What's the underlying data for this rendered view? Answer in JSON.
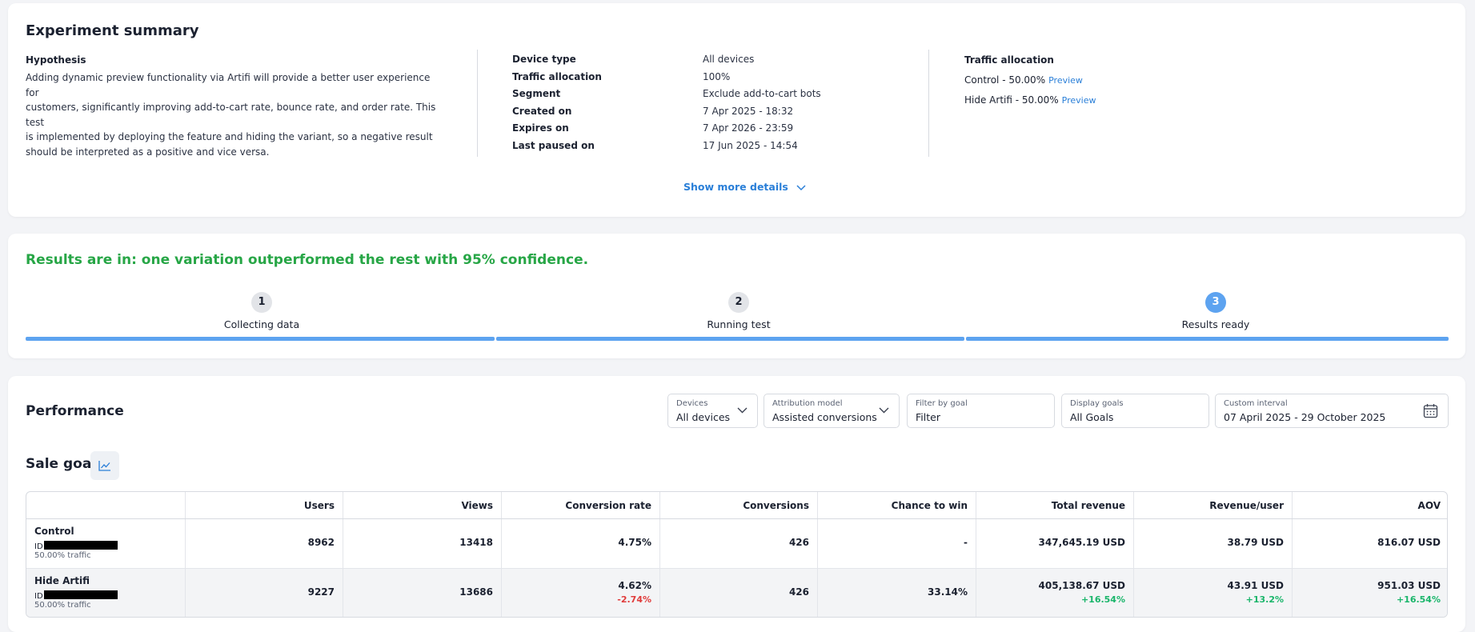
{
  "summary": {
    "title": "Experiment summary",
    "hypothesis_heading": "Hypothesis",
    "hypothesis_lines": [
      "Adding dynamic preview functionality via Artifi will provide a better user experience for",
      "customers, significantly improving add-to-cart rate, bounce rate, and order rate. This test",
      "is implemented by deploying the feature and hiding the variant, so a negative result",
      "should be interpreted as a positive and vice versa."
    ],
    "meta": [
      {
        "key": "Device type",
        "value": "All devices"
      },
      {
        "key": "Traffic allocation",
        "value": "100%"
      },
      {
        "key": "Segment",
        "value": "Exclude add-to-cart bots"
      },
      {
        "key": "Created on",
        "value": "7 Apr 2025 - 18:32"
      },
      {
        "key": "Expires on",
        "value": "7 Apr 2026 - 23:59"
      },
      {
        "key": "Last paused on",
        "value": "17 Jun 2025 - 14:54"
      }
    ],
    "traffic_heading": "Traffic allocation",
    "traffic": [
      {
        "label": "Control - 50.00%",
        "link": "Preview"
      },
      {
        "label": "Hide Artifi - 50.00%",
        "link": "Preview"
      }
    ],
    "show_more": "Show more details"
  },
  "results": {
    "headline": "Results are in: one variation outperformed the rest with 95% confidence.",
    "steps": [
      {
        "num": "1",
        "label": "Collecting data"
      },
      {
        "num": "2",
        "label": "Running test"
      },
      {
        "num": "3",
        "label": "Results ready"
      }
    ]
  },
  "performance": {
    "title": "Performance",
    "filters": {
      "devices": {
        "label": "Devices",
        "value": "All devices"
      },
      "attribution": {
        "label": "Attribution model",
        "value": "Assisted conversions"
      },
      "goal": {
        "label": "Filter by goal",
        "value": "Filter"
      },
      "display": {
        "label": "Display goals",
        "value": "All Goals"
      },
      "interval": {
        "label": "Custom interval",
        "value": "07 April 2025 - 29 October 2025"
      }
    },
    "goal_title": "Sale goal",
    "columns": [
      "Users",
      "Views",
      "Conversion rate",
      "Conversions",
      "Chance to win",
      "Total revenue",
      "Revenue/user",
      "AOV"
    ],
    "rows": [
      {
        "name": "Control",
        "id_prefix": "ID",
        "traffic": "50.00% traffic",
        "users": "8962",
        "views": "13418",
        "conv_rate": "4.75%",
        "conv_rate_delta": "",
        "conversions": "426",
        "chance": "-",
        "revenue": "347,645.19 USD",
        "revenue_delta": "",
        "rev_user": "38.79 USD",
        "rev_user_delta": "",
        "aov": "816.07 USD",
        "aov_delta": ""
      },
      {
        "name": "Hide Artifi",
        "id_prefix": "ID",
        "traffic": "50.00% traffic",
        "users": "9227",
        "views": "13686",
        "conv_rate": "4.62%",
        "conv_rate_delta": "-2.74%",
        "conversions": "426",
        "chance": "33.14%",
        "revenue": "405,138.67 USD",
        "revenue_delta": "+16.54%",
        "rev_user": "43.91 USD",
        "rev_user_delta": "+13.2%",
        "aov": "951.03 USD",
        "aov_delta": "+16.54%"
      }
    ]
  }
}
